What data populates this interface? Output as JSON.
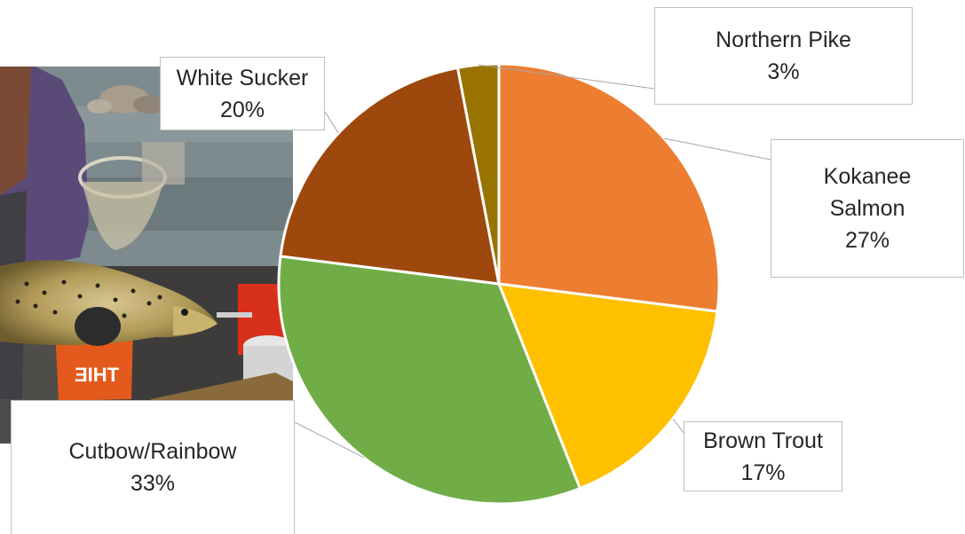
{
  "chart_data": {
    "type": "pie",
    "title": "",
    "slices": [
      {
        "label": "Kokanee Salmon",
        "label_lines": [
          "Kokanee",
          "Salmon"
        ],
        "value": 27,
        "value_label": "27%",
        "color": "#ed7d31"
      },
      {
        "label": "Brown Trout",
        "label_lines": [
          "Brown Trout"
        ],
        "value": 17,
        "value_label": "17%",
        "color": "#ffc000"
      },
      {
        "label": "Cutbow/Rainbow",
        "label_lines": [
          "Cutbow/Rainbow"
        ],
        "value": 33,
        "value_label": "33%",
        "color": "#70ad47"
      },
      {
        "label": "White Sucker",
        "label_lines": [
          "White Sucker"
        ],
        "value": 20,
        "value_label": "20%",
        "color": "#9e480e"
      },
      {
        "label": "Northern Pike",
        "label_lines": [
          "Northern Pike"
        ],
        "value": 3,
        "value_label": "3%",
        "color": "#997300"
      }
    ],
    "start_angle_deg": 0,
    "direction": "clockwise",
    "legend": "none",
    "data_labels": "callouts"
  },
  "photo": {
    "icon": "brown-trout-photo",
    "description_visible": false
  }
}
